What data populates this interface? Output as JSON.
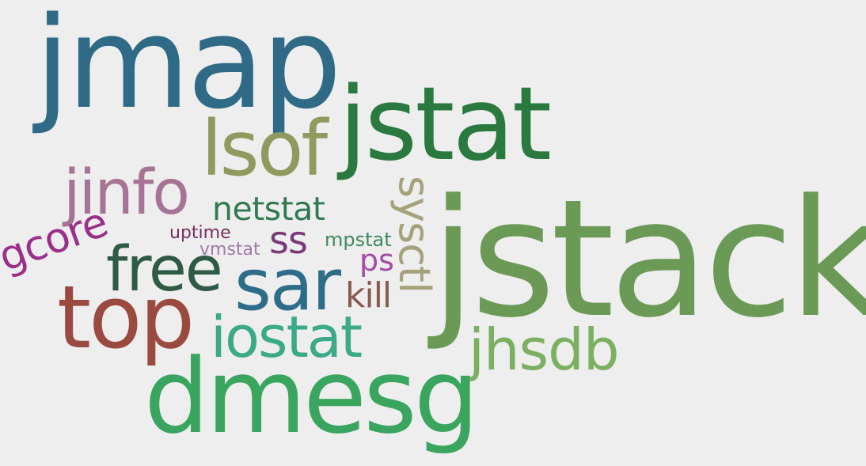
{
  "background": "#eeeeee",
  "words": [
    {
      "key": "jmap",
      "text": "jmap",
      "color": "#2f6a87"
    },
    {
      "key": "jstat",
      "text": "jstat",
      "color": "#2a7a3f"
    },
    {
      "key": "lsof",
      "text": "lsof",
      "color": "#8e9a5e"
    },
    {
      "key": "jinfo",
      "text": "jinfo",
      "color": "#a77495"
    },
    {
      "key": "netstat",
      "text": "netstat",
      "color": "#2f7a4e"
    },
    {
      "key": "sysctl",
      "text": "sysctl",
      "color": "#a5a27a"
    },
    {
      "key": "uptime",
      "text": "uptime",
      "color": "#7a2f5e"
    },
    {
      "key": "ss",
      "text": "ss",
      "color": "#7a3a7a"
    },
    {
      "key": "mpstat",
      "text": "mpstat",
      "color": "#3f8a5e"
    },
    {
      "key": "gcore",
      "text": "gcore",
      "color": "#9a2f8a"
    },
    {
      "key": "vmstat",
      "text": "vmstat",
      "color": "#a07aa8"
    },
    {
      "key": "ps",
      "text": "ps",
      "color": "#a54aa5"
    },
    {
      "key": "free",
      "text": "free",
      "color": "#2f5a45"
    },
    {
      "key": "sar",
      "text": "sar",
      "color": "#2e6d8a"
    },
    {
      "key": "kill",
      "text": "kill",
      "color": "#8a5a4e"
    },
    {
      "key": "jstack",
      "text": "jstack",
      "color": "#6a9a55"
    },
    {
      "key": "top",
      "text": "top",
      "color": "#9a4a3e"
    },
    {
      "key": "iostat",
      "text": "iostat",
      "color": "#3aaa88"
    },
    {
      "key": "jhsdb",
      "text": "jhsdb",
      "color": "#7ab060"
    },
    {
      "key": "dmesg",
      "text": "dmesg",
      "color": "#3aa55e"
    }
  ]
}
